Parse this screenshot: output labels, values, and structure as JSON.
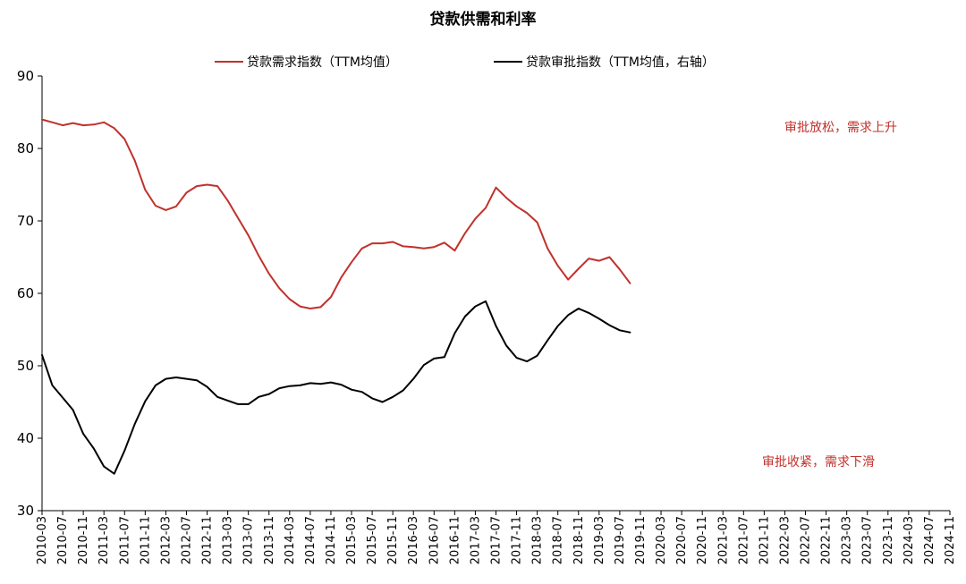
{
  "chart_data": {
    "type": "line",
    "title": "贷款供需和利率",
    "ylim": [
      30,
      90
    ],
    "yticks": [
      30,
      40,
      50,
      60,
      70,
      80,
      90
    ],
    "grid": false,
    "legend_position": "top",
    "x": [
      "2010-03",
      "2010-07",
      "2010-11",
      "2011-03",
      "2011-07",
      "2011-11",
      "2012-03",
      "2012-07",
      "2012-11",
      "2013-03",
      "2013-07",
      "2013-11",
      "2014-03",
      "2014-07",
      "2014-11",
      "2015-03",
      "2015-07",
      "2015-11",
      "2016-03",
      "2016-07",
      "2016-11",
      "2017-03",
      "2017-07",
      "2017-11",
      "2018-03",
      "2018-07",
      "2018-11",
      "2019-03",
      "2019-07",
      "2019-11",
      "2020-03",
      "2020-07",
      "2020-11",
      "2021-03",
      "2021-07",
      "2021-11",
      "2022-03",
      "2022-07",
      "2022-11",
      "2023-03",
      "2023-07",
      "2023-11",
      "2024-03",
      "2024-07",
      "2024-11"
    ],
    "series": [
      {
        "name": "贷款需求指数（TTM均值）",
        "color": "#c0312b",
        "points": [
          [
            "2010-03",
            84.0
          ],
          [
            "2010-05",
            83.6
          ],
          [
            "2010-07",
            83.2
          ],
          [
            "2010-09",
            83.5
          ],
          [
            "2010-11",
            83.2
          ],
          [
            "2011-01",
            83.3
          ],
          [
            "2011-03",
            83.6
          ],
          [
            "2011-05",
            82.8
          ],
          [
            "2011-07",
            81.3
          ],
          [
            "2011-09",
            78.3
          ],
          [
            "2011-11",
            74.3
          ],
          [
            "2012-01",
            72.1
          ],
          [
            "2012-03",
            71.5
          ],
          [
            "2012-05",
            72.0
          ],
          [
            "2012-07",
            73.9
          ],
          [
            "2012-09",
            74.8
          ],
          [
            "2012-11",
            75.0
          ],
          [
            "2013-01",
            74.8
          ],
          [
            "2013-03",
            72.8
          ],
          [
            "2013-05",
            70.4
          ],
          [
            "2013-07",
            68.0
          ],
          [
            "2013-09",
            65.2
          ],
          [
            "2013-11",
            62.7
          ],
          [
            "2014-01",
            60.7
          ],
          [
            "2014-03",
            59.2
          ],
          [
            "2014-05",
            58.2
          ],
          [
            "2014-07",
            57.9
          ],
          [
            "2014-09",
            58.1
          ],
          [
            "2014-11",
            59.5
          ],
          [
            "2015-01",
            62.2
          ],
          [
            "2015-03",
            64.3
          ],
          [
            "2015-05",
            66.2
          ],
          [
            "2015-07",
            66.9
          ],
          [
            "2015-09",
            66.9
          ],
          [
            "2015-11",
            67.1
          ],
          [
            "2016-01",
            66.5
          ],
          [
            "2016-03",
            66.4
          ],
          [
            "2016-05",
            66.2
          ],
          [
            "2016-07",
            66.4
          ],
          [
            "2016-09",
            67.0
          ],
          [
            "2016-11",
            65.9
          ],
          [
            "2017-01",
            68.3
          ],
          [
            "2017-03",
            70.3
          ],
          [
            "2017-05",
            71.8
          ],
          [
            "2017-07",
            74.6
          ],
          [
            "2017-09",
            73.2
          ],
          [
            "2017-11",
            72.0
          ],
          [
            "2018-01",
            71.1
          ],
          [
            "2018-03",
            69.8
          ],
          [
            "2018-05",
            66.2
          ],
          [
            "2018-07",
            63.8
          ],
          [
            "2018-09",
            61.9
          ],
          [
            "2018-11",
            63.4
          ],
          [
            "2019-01",
            64.8
          ],
          [
            "2019-03",
            64.5
          ],
          [
            "2019-05",
            65.0
          ],
          [
            "2019-07",
            63.3
          ],
          [
            "2019-09",
            61.4
          ]
        ]
      },
      {
        "name": "贷款审批指数（TTM均值，右轴）",
        "color": "#000000",
        "points": [
          [
            "2010-03",
            51.5
          ],
          [
            "2010-05",
            47.3
          ],
          [
            "2010-07",
            45.6
          ],
          [
            "2010-09",
            43.9
          ],
          [
            "2010-11",
            40.6
          ],
          [
            "2011-01",
            38.6
          ],
          [
            "2011-03",
            36.1
          ],
          [
            "2011-05",
            35.1
          ],
          [
            "2011-07",
            38.3
          ],
          [
            "2011-09",
            42.0
          ],
          [
            "2011-11",
            45.1
          ],
          [
            "2012-01",
            47.3
          ],
          [
            "2012-03",
            48.2
          ],
          [
            "2012-05",
            48.4
          ],
          [
            "2012-07",
            48.2
          ],
          [
            "2012-09",
            48.0
          ],
          [
            "2012-11",
            47.1
          ],
          [
            "2013-01",
            45.7
          ],
          [
            "2013-03",
            45.2
          ],
          [
            "2013-05",
            44.7
          ],
          [
            "2013-07",
            44.7
          ],
          [
            "2013-09",
            45.7
          ],
          [
            "2013-11",
            46.1
          ],
          [
            "2014-01",
            46.9
          ],
          [
            "2014-03",
            47.2
          ],
          [
            "2014-05",
            47.3
          ],
          [
            "2014-07",
            47.6
          ],
          [
            "2014-09",
            47.5
          ],
          [
            "2014-11",
            47.7
          ],
          [
            "2015-01",
            47.4
          ],
          [
            "2015-03",
            46.7
          ],
          [
            "2015-05",
            46.4
          ],
          [
            "2015-07",
            45.5
          ],
          [
            "2015-09",
            45.0
          ],
          [
            "2015-11",
            45.7
          ],
          [
            "2016-01",
            46.6
          ],
          [
            "2016-03",
            48.2
          ],
          [
            "2016-05",
            50.1
          ],
          [
            "2016-07",
            51.0
          ],
          [
            "2016-09",
            51.2
          ],
          [
            "2016-11",
            54.5
          ],
          [
            "2017-01",
            56.8
          ],
          [
            "2017-03",
            58.2
          ],
          [
            "2017-05",
            58.9
          ],
          [
            "2017-07",
            55.5
          ],
          [
            "2017-09",
            52.8
          ],
          [
            "2017-11",
            51.1
          ],
          [
            "2018-01",
            50.6
          ],
          [
            "2018-03",
            51.4
          ],
          [
            "2018-05",
            53.5
          ],
          [
            "2018-07",
            55.5
          ],
          [
            "2018-09",
            57.0
          ],
          [
            "2018-11",
            57.9
          ],
          [
            "2019-01",
            57.3
          ],
          [
            "2019-03",
            56.5
          ],
          [
            "2019-05",
            55.6
          ],
          [
            "2019-07",
            54.9
          ],
          [
            "2019-09",
            54.6
          ]
        ]
      }
    ],
    "annotations": [
      {
        "text": "审批放松，需求上升",
        "color": "#c0312b"
      },
      {
        "text": "审批收紧，需求下滑",
        "color": "#c0312b"
      }
    ]
  }
}
